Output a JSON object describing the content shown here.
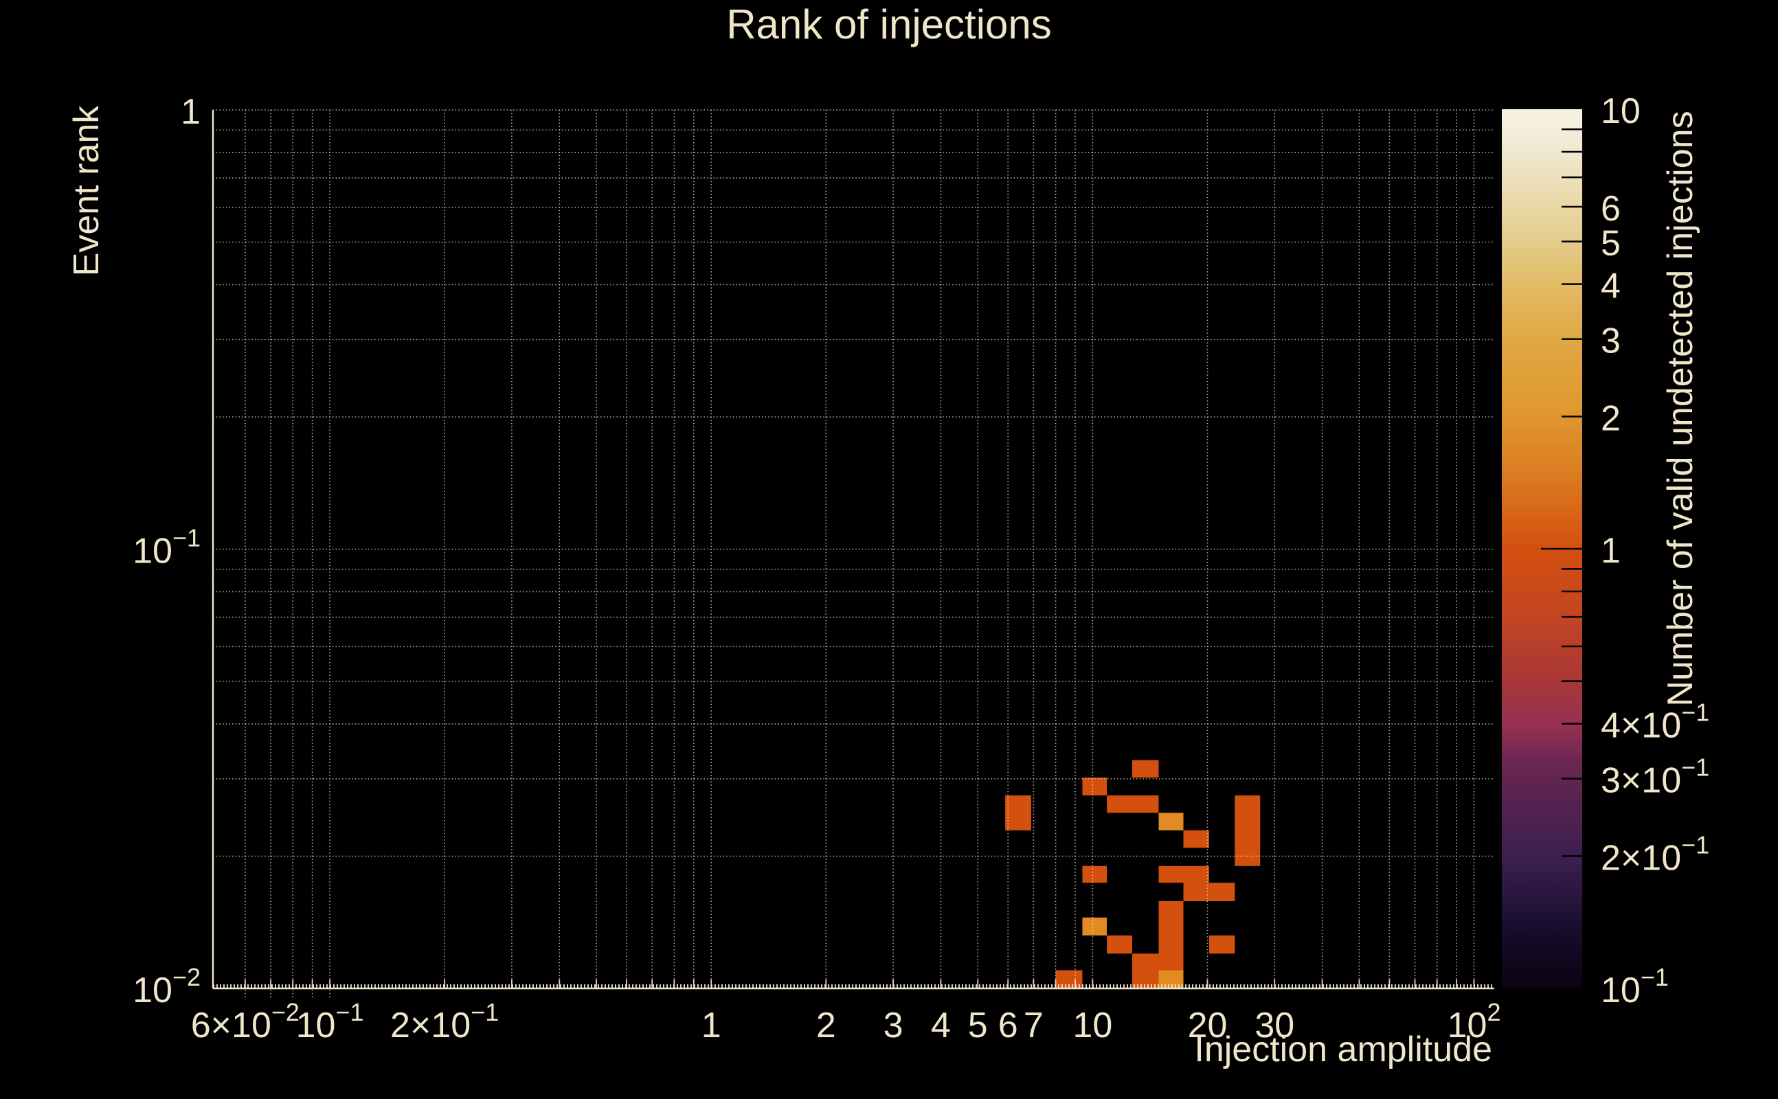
{
  "chart_data": {
    "type": "heatmap",
    "title": "Rank of injections",
    "xlabel": "Injection amplitude",
    "ylabel": "Event rank",
    "x_scale": "log",
    "y_scale": "log",
    "xlim": [
      0.0494,
      113
    ],
    "ylim": [
      0.01,
      1
    ],
    "grid": true,
    "x_ticks": [
      {
        "v": 0.06,
        "base": "6×10",
        "exp": "−2"
      },
      {
        "v": 0.1,
        "base": "10",
        "exp": "−1"
      },
      {
        "v": 0.2,
        "base": "2×10",
        "exp": "−1"
      },
      {
        "v": 1,
        "base": "1"
      },
      {
        "v": 2,
        "base": "2"
      },
      {
        "v": 3,
        "base": "3"
      },
      {
        "v": 4,
        "base": "4"
      },
      {
        "v": 5,
        "base": "5"
      },
      {
        "v": 6,
        "base": "6"
      },
      {
        "v": 7,
        "base": "7"
      },
      {
        "v": 10,
        "base": "10"
      },
      {
        "v": 20,
        "base": "20"
      },
      {
        "v": 30,
        "base": "30"
      },
      {
        "v": 100,
        "base": "10",
        "exp": "2"
      }
    ],
    "y_ticks": [
      {
        "v": 1,
        "base": "1"
      },
      {
        "v": 0.1,
        "base": "10",
        "exp": "−1"
      },
      {
        "v": 0.01,
        "base": "10",
        "exp": "−2"
      }
    ],
    "x_minor_gridlines": [
      0.06,
      0.07,
      0.08,
      0.09,
      0.1,
      0.2,
      0.3,
      0.4,
      0.5,
      0.6,
      0.7,
      0.8,
      0.9,
      1,
      2,
      3,
      4,
      5,
      6,
      7,
      8,
      9,
      10,
      20,
      30,
      40,
      50,
      60,
      70,
      80,
      90,
      100
    ],
    "y_minor_gridlines": [
      0.02,
      0.03,
      0.04,
      0.05,
      0.06,
      0.07,
      0.08,
      0.09,
      0.1,
      0.2,
      0.3,
      0.4,
      0.5,
      0.6,
      0.7,
      0.8,
      0.9,
      1
    ],
    "value_colors": {
      "1": "#d4500f",
      "2": "#e18b22"
    },
    "cells": [
      {
        "x0": 12.7,
        "x1": 14.9,
        "y0": 0.0302,
        "y1": 0.0331,
        "n": 1
      },
      {
        "x0": 9.4,
        "x1": 10.9,
        "y0": 0.0275,
        "y1": 0.0302,
        "n": 1
      },
      {
        "x0": 5.9,
        "x1": 6.9,
        "y0": 0.0229,
        "y1": 0.0275,
        "n": 1
      },
      {
        "x0": 10.9,
        "x1": 14.9,
        "y0": 0.0251,
        "y1": 0.0275,
        "n": 1
      },
      {
        "x0": 14.9,
        "x1": 17.3,
        "y0": 0.0229,
        "y1": 0.0251,
        "n": 2
      },
      {
        "x0": 17.3,
        "x1": 20.2,
        "y0": 0.0209,
        "y1": 0.0229,
        "n": 1
      },
      {
        "x0": 23.6,
        "x1": 27.5,
        "y0": 0.019,
        "y1": 0.0275,
        "n": 1
      },
      {
        "x0": 9.4,
        "x1": 10.9,
        "y0": 0.0174,
        "y1": 0.019,
        "n": 1
      },
      {
        "x0": 14.9,
        "x1": 20.2,
        "y0": 0.0174,
        "y1": 0.019,
        "n": 1
      },
      {
        "x0": 17.3,
        "x1": 23.6,
        "y0": 0.0158,
        "y1": 0.0174,
        "n": 1
      },
      {
        "x0": 14.9,
        "x1": 17.3,
        "y0": 0.011,
        "y1": 0.0158,
        "n": 1
      },
      {
        "x0": 9.4,
        "x1": 10.9,
        "y0": 0.0132,
        "y1": 0.0145,
        "n": 2
      },
      {
        "x0": 10.9,
        "x1": 12.7,
        "y0": 0.012,
        "y1": 0.0132,
        "n": 1
      },
      {
        "x0": 20.2,
        "x1": 23.6,
        "y0": 0.012,
        "y1": 0.0132,
        "n": 1
      },
      {
        "x0": 12.7,
        "x1": 14.9,
        "y0": 0.01,
        "y1": 0.012,
        "n": 1
      },
      {
        "x0": 14.9,
        "x1": 17.3,
        "y0": 0.01,
        "y1": 0.011,
        "n": 2
      },
      {
        "x0": 8.0,
        "x1": 9.4,
        "y0": 0.01,
        "y1": 0.011,
        "n": 1
      }
    ],
    "colorbar": {
      "label": "Number of valid undetected injections",
      "scale": "log",
      "lim": [
        0.1,
        10
      ],
      "ticks": [
        {
          "v": 10,
          "base": "10"
        },
        {
          "v": 6,
          "base": "6"
        },
        {
          "v": 5,
          "base": "5"
        },
        {
          "v": 4,
          "base": "4"
        },
        {
          "v": 3,
          "base": "3"
        },
        {
          "v": 2,
          "base": "2"
        },
        {
          "v": 1,
          "base": "1"
        },
        {
          "v": 0.4,
          "base": "4×10",
          "exp": "−1"
        },
        {
          "v": 0.3,
          "base": "3×10",
          "exp": "−1"
        },
        {
          "v": 0.2,
          "base": "2×10",
          "exp": "−1"
        },
        {
          "v": 0.1,
          "base": "10",
          "exp": "−1"
        }
      ],
      "minor_ticks": [
        9,
        8,
        7,
        6,
        5,
        4,
        3,
        2,
        0.9,
        0.8,
        0.7,
        0.6,
        0.5,
        0.4,
        0.3,
        0.2
      ],
      "major_ticks": [
        1
      ],
      "gradient": [
        {
          "at": 0.0,
          "color": "#0a0413"
        },
        {
          "at": 0.06,
          "color": "#150c29"
        },
        {
          "at": 0.15,
          "color": "#3d1f51"
        },
        {
          "at": 0.22,
          "color": "#59234f"
        },
        {
          "at": 0.26,
          "color": "#6e2752"
        },
        {
          "at": 0.3,
          "color": "#963150"
        },
        {
          "at": 0.35,
          "color": "#a83737"
        },
        {
          "at": 0.42,
          "color": "#c34423"
        },
        {
          "at": 0.5,
          "color": "#d4500f"
        },
        {
          "at": 0.58,
          "color": "#da7a20"
        },
        {
          "at": 0.65,
          "color": "#e0962f"
        },
        {
          "at": 0.74,
          "color": "#e0a843"
        },
        {
          "at": 0.8,
          "color": "#e2bb64"
        },
        {
          "at": 0.85,
          "color": "#e4cc8c"
        },
        {
          "at": 0.89,
          "color": "#e9d8a6"
        },
        {
          "at": 0.95,
          "color": "#f0e8cf"
        },
        {
          "at": 1.0,
          "color": "#f6f2e3"
        }
      ]
    }
  },
  "colors": {
    "background": "#000000",
    "text": "#f0e6c9",
    "grid": "#efe6c8",
    "axis": "#f0e7cc",
    "colorbar_tick": "#000000"
  }
}
